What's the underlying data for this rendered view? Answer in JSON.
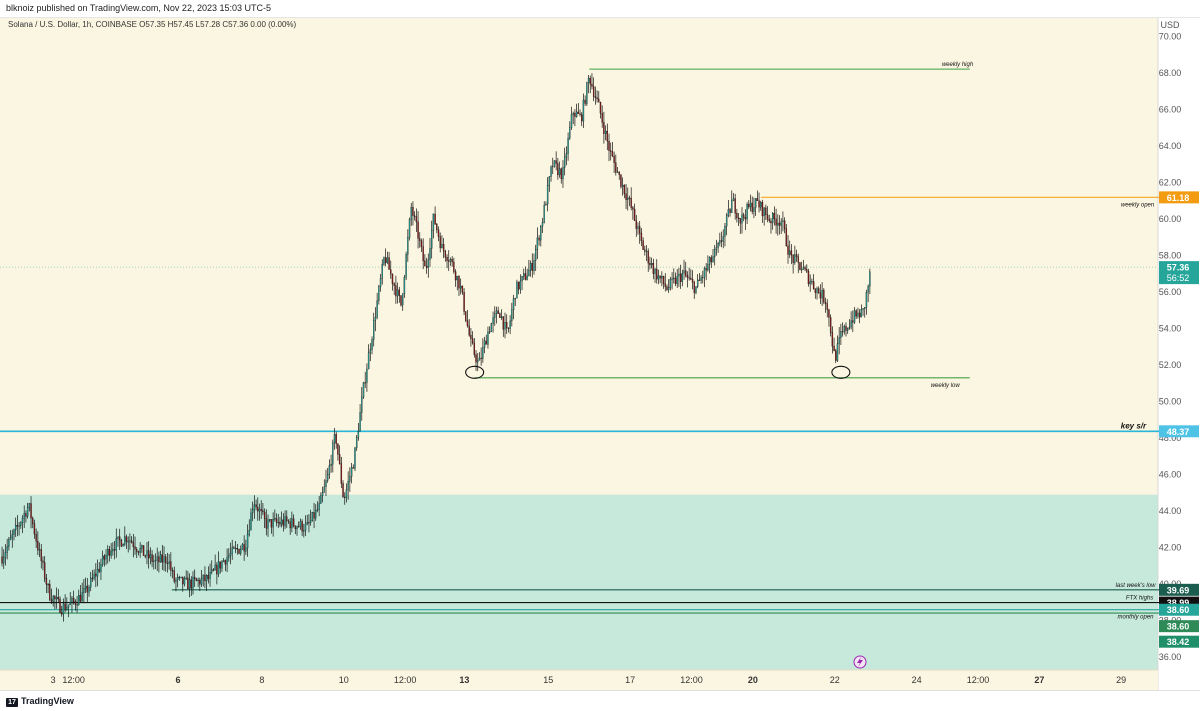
{
  "header": {
    "published": "blknoiz published on TradingView.com, Nov 22, 2023 15:03 UTC-5"
  },
  "footer": {
    "brand": "TradingView",
    "logo_glyph": "17"
  },
  "chart_data": {
    "type": "candlestick",
    "symbol_line": "Solana / U.S. Dollar, 1h, COINBASE  O57.35  H57.45  L57.28  C57.36  0.00 (0.00%)",
    "currency": "USD",
    "ylim": [
      35.3,
      71.0
    ],
    "y_ticks": [
      "36.00",
      "38.00",
      "40.00",
      "42.00",
      "44.00",
      "46.00",
      "48.00",
      "50.00",
      "52.00",
      "54.00",
      "56.00",
      "58.00",
      "60.00",
      "62.00",
      "64.00",
      "66.00",
      "68.00",
      "70.00"
    ],
    "x_ticks": [
      {
        "label": "3",
        "t": 0.9,
        "bold": false
      },
      {
        "label": "12:00",
        "t": 1.4,
        "bold": false
      },
      {
        "label": "6",
        "t": 3.95,
        "bold": true
      },
      {
        "label": "8",
        "t": 6.0,
        "bold": false
      },
      {
        "label": "10",
        "t": 8.0,
        "bold": false
      },
      {
        "label": "12:00",
        "t": 9.5,
        "bold": false
      },
      {
        "label": "13",
        "t": 10.95,
        "bold": true
      },
      {
        "label": "15",
        "t": 13.0,
        "bold": false
      },
      {
        "label": "17",
        "t": 15.0,
        "bold": false
      },
      {
        "label": "12:00",
        "t": 16.5,
        "bold": false
      },
      {
        "label": "20",
        "t": 18.0,
        "bold": true
      },
      {
        "label": "22",
        "t": 20.0,
        "bold": false
      },
      {
        "label": "24",
        "t": 22.0,
        "bold": false
      },
      {
        "label": "12:00",
        "t": 23.5,
        "bold": false
      },
      {
        "label": "27",
        "t": 25.0,
        "bold": true
      },
      {
        "label": "29",
        "t": 27.0,
        "bold": false
      }
    ],
    "xlim": [
      -0.4,
      27.9
    ],
    "candles_end_t": 20.9,
    "close_path": [
      [
        -0.35,
        41.5
      ],
      [
        0.3,
        44.3
      ],
      [
        0.55,
        41.8
      ],
      [
        0.8,
        39.5
      ],
      [
        1.1,
        38.7
      ],
      [
        1.4,
        39.0
      ],
      [
        1.7,
        39.6
      ],
      [
        1.95,
        40.6
      ],
      [
        2.3,
        42.0
      ],
      [
        2.7,
        42.6
      ],
      [
        3.1,
        41.7
      ],
      [
        3.4,
        41.2
      ],
      [
        3.7,
        41.4
      ],
      [
        3.85,
        40.2
      ],
      [
        4.2,
        40.0
      ],
      [
        4.7,
        40.3
      ],
      [
        5.1,
        41.4
      ],
      [
        5.6,
        42.2
      ],
      [
        5.8,
        44.6
      ],
      [
        6.1,
        43.3
      ],
      [
        6.6,
        43.4
      ],
      [
        7.1,
        43.1
      ],
      [
        7.4,
        44.2
      ],
      [
        7.6,
        45.8
      ],
      [
        7.8,
        48.2
      ],
      [
        8.0,
        44.6
      ],
      [
        8.25,
        46.8
      ],
      [
        8.5,
        51.0
      ],
      [
        8.8,
        55.2
      ],
      [
        9.0,
        58.0
      ],
      [
        9.2,
        56.6
      ],
      [
        9.4,
        55.3
      ],
      [
        9.65,
        60.6
      ],
      [
        9.8,
        59.3
      ],
      [
        10.0,
        57.1
      ],
      [
        10.2,
        60.1
      ],
      [
        10.4,
        58.4
      ],
      [
        10.6,
        57.8
      ],
      [
        10.85,
        56.3
      ],
      [
        11.1,
        53.2
      ],
      [
        11.3,
        52.0
      ],
      [
        11.55,
        54.0
      ],
      [
        11.8,
        55.0
      ],
      [
        12.0,
        53.6
      ],
      [
        12.2,
        56.1
      ],
      [
        12.6,
        57.4
      ],
      [
        12.85,
        59.9
      ],
      [
        13.1,
        63.0
      ],
      [
        13.35,
        62.4
      ],
      [
        13.6,
        65.9
      ],
      [
        13.8,
        65.5
      ],
      [
        14.0,
        67.8
      ],
      [
        14.25,
        66.0
      ],
      [
        14.5,
        63.7
      ],
      [
        14.8,
        61.9
      ],
      [
        15.0,
        60.8
      ],
      [
        15.3,
        58.5
      ],
      [
        15.6,
        57.1
      ],
      [
        15.9,
        56.2
      ],
      [
        16.3,
        57.0
      ],
      [
        16.6,
        56.2
      ],
      [
        16.9,
        57.4
      ],
      [
        17.2,
        58.6
      ],
      [
        17.5,
        61.0
      ],
      [
        17.7,
        59.9
      ],
      [
        17.9,
        60.6
      ],
      [
        18.1,
        60.9
      ],
      [
        18.4,
        60.0
      ],
      [
        18.7,
        59.9
      ],
      [
        18.9,
        58.0
      ],
      [
        19.2,
        57.3
      ],
      [
        19.5,
        56.3
      ],
      [
        19.8,
        55.5
      ],
      [
        20.0,
        52.3
      ],
      [
        20.15,
        53.6
      ],
      [
        20.45,
        54.6
      ],
      [
        20.7,
        54.9
      ],
      [
        20.9,
        57.4
      ]
    ],
    "lines": [
      {
        "name": "weekly high",
        "price": 68.2,
        "t_start": 14.0,
        "t_end": 23.3,
        "color": "#43a047",
        "label_t": 23.0
      },
      {
        "name": "weekly low",
        "price": 51.3,
        "t_start": 11.2,
        "t_end": 23.3,
        "color": "#43a047",
        "label_t": 22.7
      },
      {
        "name": "weekly open",
        "price": 61.18,
        "t_start": 18.2,
        "t_end": 28.0,
        "color": "#f5a623",
        "label_t": 27.4
      },
      {
        "name": "key s/r",
        "price": 48.37,
        "t_start": -0.4,
        "t_end": 28.0,
        "color": "#29b6d9",
        "label_t": 27.3
      },
      {
        "name": "last week's low",
        "price": 39.69,
        "t_start": 3.8,
        "t_end": 28.0,
        "color": "#1b5e4f",
        "label_t": 27.35
      },
      {
        "name": "FTX highs",
        "price": 38.99,
        "t_start": -0.4,
        "t_end": 28.0,
        "color": "#131313",
        "label_t": 27.45
      },
      {
        "name": "monthly open",
        "price": 38.6,
        "t_start": -0.4,
        "t_end": 28.0,
        "color": "#29a39f",
        "label_t": 27.35
      },
      {
        "name": "monthly open 2",
        "price": 38.42,
        "t_start": -0.4,
        "t_end": 28.0,
        "color": "#2e8b57",
        "label_t": null
      }
    ],
    "line_labels": {
      "weekly high": "weekly high",
      "weekly low": "weekly low",
      "weekly open": "weekly open",
      "key s/r": "key s/r",
      "last week's low": "last week's low",
      "FTX highs": "FTX highs",
      "monthly open": "monthly open"
    },
    "current_price": {
      "price": 57.36,
      "countdown": "56:52",
      "color": "#26a69a"
    },
    "price_tags": [
      {
        "text": "61.18",
        "price": 61.18,
        "bg": "#f39c12",
        "fg": "#ffffff"
      },
      {
        "text": "48.37",
        "price": 48.37,
        "bg": "#4fc3e6",
        "fg": "#ffffff"
      },
      {
        "text": "39.69",
        "price": 39.69,
        "bg": "#1b5e4f",
        "fg": "#ffffff"
      },
      {
        "text": "38.99",
        "price": 38.99,
        "bg": "#111111",
        "fg": "#ffffff"
      },
      {
        "text": "38.60",
        "price": 38.6,
        "bg": "#26a69a",
        "fg": "#ffffff"
      },
      {
        "text": "38.60",
        "price": 37.7,
        "bg": "#2e8b57",
        "fg": "#ffffff"
      },
      {
        "text": "38.42",
        "price": 36.85,
        "bg": "#1f8f6a",
        "fg": "#ffffff"
      }
    ],
    "zone": {
      "price_top": 44.9,
      "price_bottom": 35.3,
      "color": "#c6e9db"
    },
    "circles": [
      {
        "t": 11.2,
        "price": 51.6
      },
      {
        "t": 20.15,
        "price": 51.6
      }
    ],
    "grid": false,
    "colors": {
      "up": "#26a69a",
      "down": "#8b1a1a",
      "wick": "#111111",
      "bg": "#fbf6e1"
    }
  }
}
